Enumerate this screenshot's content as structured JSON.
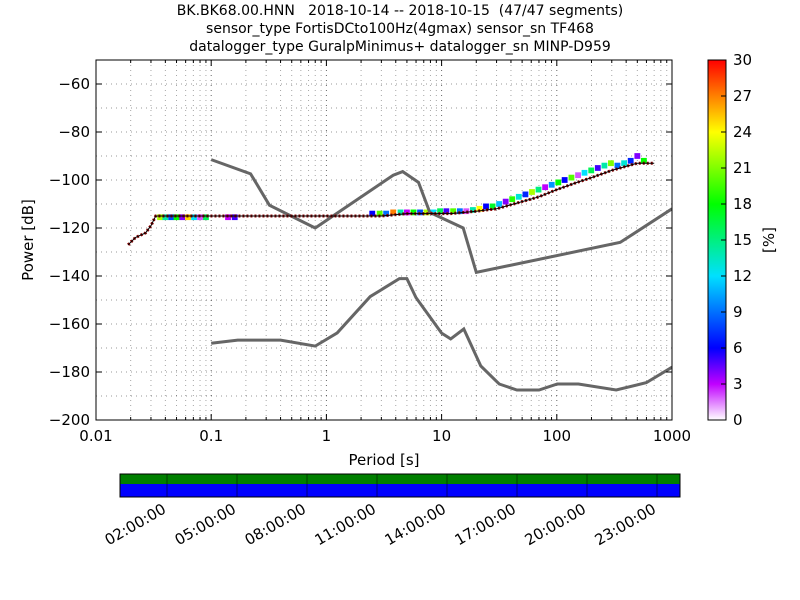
{
  "title_lines": [
    "BK.BK68.00.HNN   2018-10-14 -- 2018-10-15  (47/47 segments)",
    "sensor_type FortisDCto100Hz(4gmax) sensor_sn TF468",
    "datalogger_type GuralpMinimus+ datalogger_sn MINP-D959"
  ],
  "chart_data": {
    "type": "heatmap",
    "xlabel": "Period [s]",
    "ylabel": "Power [dB]",
    "xscale": "log",
    "xlim": [
      0.01,
      1000
    ],
    "ylim": [
      -200,
      -50
    ],
    "x_ticks": [
      0.01,
      0.1,
      1,
      10,
      100,
      1000
    ],
    "x_tick_labels": [
      "0.01",
      "0.1",
      "1",
      "10",
      "100",
      "1000"
    ],
    "y_ticks": [
      -200,
      -180,
      -160,
      -140,
      -120,
      -100,
      -80,
      -60
    ],
    "y_tick_labels": [
      "−200",
      "−180",
      "−160",
      "−140",
      "−120",
      "−100",
      "−80",
      "−60"
    ],
    "grid": true,
    "colorbar": {
      "label": "[%]",
      "range": [
        0,
        30
      ],
      "ticks": [
        0,
        3,
        6,
        9,
        12,
        15,
        18,
        21,
        24,
        27,
        30
      ],
      "tick_labels": [
        "0",
        "3",
        "6",
        "9",
        "12",
        "15",
        "18",
        "21",
        "24",
        "27",
        "30"
      ]
    },
    "psd_mode_curve": {
      "x": [
        0.019,
        0.022,
        0.027,
        0.03,
        0.033,
        0.05,
        0.1,
        0.3,
        1,
        3,
        5,
        8,
        12,
        20,
        30,
        50,
        70,
        100,
        150,
        200,
        300,
        500,
        700
      ],
      "y": [
        -127,
        -124,
        -122,
        -119,
        -115,
        -115,
        -115,
        -115,
        -115,
        -115,
        -114,
        -114,
        -114,
        -113,
        -112,
        -109,
        -107,
        -104,
        -101,
        -99,
        -96,
        -93,
        -93
      ]
    },
    "nhnm": {
      "x": [
        0.1,
        0.22,
        0.32,
        0.8,
        3.8,
        4.6,
        6.3,
        7.9,
        15.4,
        20,
        354.8,
        1000
      ],
      "y": [
        -91.5,
        -97.4,
        -110.5,
        -120,
        -98,
        -96.5,
        -101,
        -113.5,
        -120,
        -138.5,
        -126,
        -112
      ]
    },
    "nlnm": {
      "x": [
        0.1,
        0.17,
        0.4,
        0.8,
        1.24,
        2.4,
        4.3,
        5,
        6,
        10,
        12,
        15.6,
        21.9,
        31.6,
        45,
        70,
        101,
        154,
        328,
        600,
        1000
      ],
      "y": [
        -168,
        -166.7,
        -166.7,
        -169.2,
        -163.7,
        -148.6,
        -141.1,
        -141.1,
        -149,
        -163.8,
        -166.2,
        -162.1,
        -177.5,
        -185,
        -187.5,
        -187.5,
        -185,
        -185,
        -187.5,
        -184.4,
        -178
      ]
    },
    "heat_cells": [
      {
        "x": 0.036,
        "y": -115.5,
        "v": 22
      },
      {
        "x": 0.04,
        "y": -115.5,
        "v": 14
      },
      {
        "x": 0.045,
        "y": -115.5,
        "v": 8
      },
      {
        "x": 0.05,
        "y": -115.5,
        "v": 18
      },
      {
        "x": 0.056,
        "y": -115.5,
        "v": 4
      },
      {
        "x": 0.063,
        "y": -115.5,
        "v": 25
      },
      {
        "x": 0.071,
        "y": -115.5,
        "v": 12
      },
      {
        "x": 0.08,
        "y": -115.5,
        "v": 2
      },
      {
        "x": 0.09,
        "y": -115.5,
        "v": 16
      },
      {
        "x": 0.14,
        "y": -115.5,
        "v": 3
      },
      {
        "x": 0.16,
        "y": -115.5,
        "v": 5
      },
      {
        "x": 2.5,
        "y": -114,
        "v": 6
      },
      {
        "x": 2.9,
        "y": -114,
        "v": 20
      },
      {
        "x": 3.3,
        "y": -114,
        "v": 9
      },
      {
        "x": 3.8,
        "y": -113.5,
        "v": 27
      },
      {
        "x": 4.4,
        "y": -113.5,
        "v": 14
      },
      {
        "x": 5.0,
        "y": -113.5,
        "v": 3
      },
      {
        "x": 5.7,
        "y": -113.5,
        "v": 18
      },
      {
        "x": 6.5,
        "y": -113.5,
        "v": 8
      },
      {
        "x": 7.4,
        "y": -113.5,
        "v": 22
      },
      {
        "x": 8.5,
        "y": -113.5,
        "v": 12
      },
      {
        "x": 9.7,
        "y": -113,
        "v": 16
      },
      {
        "x": 11,
        "y": -113,
        "v": 5
      },
      {
        "x": 12.6,
        "y": -113,
        "v": 20
      },
      {
        "x": 14.4,
        "y": -113,
        "v": 9
      },
      {
        "x": 16.4,
        "y": -113,
        "v": 2
      },
      {
        "x": 18.7,
        "y": -112.5,
        "v": 14
      },
      {
        "x": 21.3,
        "y": -112,
        "v": 24
      },
      {
        "x": 24.3,
        "y": -111,
        "v": 6
      },
      {
        "x": 27.7,
        "y": -111,
        "v": 17
      },
      {
        "x": 31.6,
        "y": -110,
        "v": 11
      },
      {
        "x": 36,
        "y": -109,
        "v": 4
      },
      {
        "x": 41,
        "y": -108,
        "v": 19
      },
      {
        "x": 46.8,
        "y": -107,
        "v": 13
      },
      {
        "x": 53.4,
        "y": -106,
        "v": 7
      },
      {
        "x": 60.9,
        "y": -105,
        "v": 22
      },
      {
        "x": 69.4,
        "y": -104,
        "v": 15
      },
      {
        "x": 79.2,
        "y": -103,
        "v": 3
      },
      {
        "x": 90.3,
        "y": -102,
        "v": 10
      },
      {
        "x": 103,
        "y": -101,
        "v": 18
      },
      {
        "x": 117,
        "y": -100,
        "v": 6
      },
      {
        "x": 134,
        "y": -99,
        "v": 20
      },
      {
        "x": 153,
        "y": -98,
        "v": 2
      },
      {
        "x": 174,
        "y": -97,
        "v": 12
      },
      {
        "x": 199,
        "y": -96,
        "v": 16
      },
      {
        "x": 227,
        "y": -95,
        "v": 5
      },
      {
        "x": 259,
        "y": -94,
        "v": 14
      },
      {
        "x": 295,
        "y": -93,
        "v": 21
      },
      {
        "x": 336,
        "y": -94,
        "v": 9
      },
      {
        "x": 384,
        "y": -93,
        "v": 13
      },
      {
        "x": 438,
        "y": -92,
        "v": 7
      },
      {
        "x": 500,
        "y": -90,
        "v": 4
      },
      {
        "x": 570,
        "y": -92,
        "v": 18
      }
    ],
    "colors": {
      "mode_line": "#000000",
      "mode_trace": "#8b0000",
      "noise_models": "#666666",
      "grid": "#000000"
    }
  },
  "coverage": {
    "time_tick_labels": [
      "02:00:00",
      "05:00:00",
      "08:00:00",
      "11:00:00",
      "14:00:00",
      "17:00:00",
      "20:00:00",
      "23:00:00"
    ],
    "data_color": "#007f00",
    "psd_color": "#0000ff"
  }
}
